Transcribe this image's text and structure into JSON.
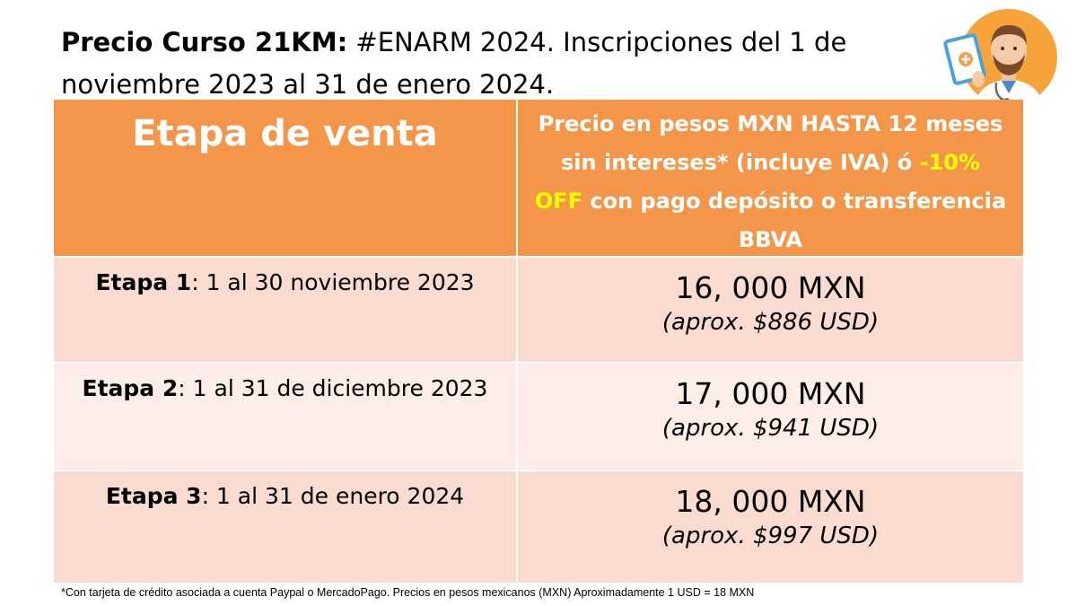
{
  "title": {
    "bold": "Precio Curso 21KM:",
    "rest": " #ENARM 2024. Inscripciones del 1 de noviembre 2023 al 31 de enero 2024."
  },
  "table": {
    "header": {
      "col1": "Etapa de venta",
      "col2_before": "Precio en pesos MXN HASTA 12 meses sin intereses* (incluye IVA) ó ",
      "col2_highlight": "-10% OFF",
      "col2_after": " con pago depósito o transferencia BBVA"
    },
    "rows": [
      {
        "stage": "Etapa 1",
        "dates": ": 1 al 30 noviembre 2023",
        "price": "16, 000 MXN",
        "usd": "(aprox. $886 USD)"
      },
      {
        "stage": "Etapa 2",
        "dates": ": 1 al 31 de diciembre 2023",
        "price": "17, 000 MXN",
        "usd": "(aprox. $941 USD)"
      },
      {
        "stage": "Etapa 3",
        "dates": ": 1 al 31 de enero 2024",
        "price": "18, 000 MXN",
        "usd": "(aprox. $997 USD)"
      }
    ]
  },
  "footnote": "*Con tarjeta de crédito asociada a cuenta Paypal o MercadoPago. Precios en pesos mexicanos (MXN) Aproximadamente 1 USD = 18 MXN",
  "colors": {
    "header_bg": "#f4964a",
    "row_odd": "#fadbd0",
    "row_even": "#fcede8",
    "highlight": "#ffff00"
  },
  "icons": {
    "avatar": "doctor-avatar-icon"
  }
}
